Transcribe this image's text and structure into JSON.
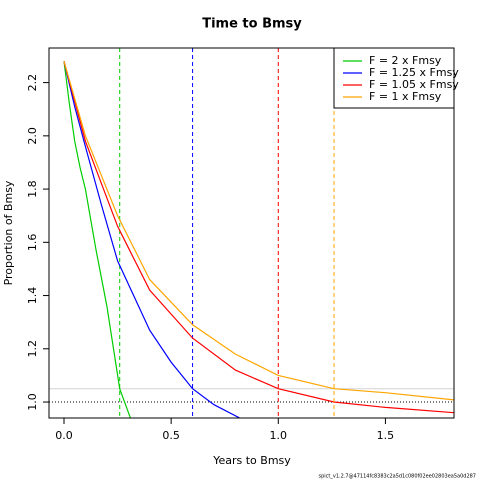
{
  "chart_data": {
    "type": "line",
    "title": "Time to Bmsy",
    "xlabel": "Years to Bmsy",
    "ylabel": "Proportion of Bmsy",
    "footer": "spict_v1.2.7@47114fc8383c2a5d1c080f02ee02803ea5a0d287",
    "xlim": [
      -0.07,
      1.82
    ],
    "ylim": [
      0.94,
      2.33
    ],
    "xticks": [
      {
        "value": 0,
        "label": "0.0"
      },
      {
        "value": 0.5,
        "label": "0.5"
      },
      {
        "value": 1,
        "label": "1.0"
      },
      {
        "value": 1.5,
        "label": "1.5"
      }
    ],
    "yticks": [
      {
        "value": 1,
        "label": "1.0"
      },
      {
        "value": 1.2,
        "label": "1.2"
      },
      {
        "value": 1.4,
        "label": "1.4"
      },
      {
        "value": 1.6,
        "label": "1.6"
      },
      {
        "value": 1.8,
        "label": "1.8"
      },
      {
        "value": 2,
        "label": "2.0"
      },
      {
        "value": 2.2,
        "label": "2.2"
      }
    ],
    "legend": "topright",
    "hlines": [
      {
        "value": 1.05,
        "color": "#d3d3d3",
        "style": "solid"
      },
      {
        "value": 1,
        "color": "#000000",
        "style": "dotted"
      }
    ],
    "series": [
      {
        "name": "F = 2 x Fmsy",
        "color": "#00cd00",
        "time": 0.26,
        "x": [
          0,
          0.025,
          0.05,
          0.075,
          0.1,
          0.15,
          0.2,
          0.26,
          0.31
        ],
        "values": [
          2.28,
          2.12,
          1.98,
          1.88,
          1.8,
          1.57,
          1.36,
          1.05,
          0.94
        ]
      },
      {
        "name": "F = 1.25 x Fmsy",
        "color": "#0000ff",
        "time": 0.6,
        "x": [
          0,
          0.05,
          0.1,
          0.175,
          0.25,
          0.4,
          0.5,
          0.6,
          0.7,
          0.82
        ],
        "values": [
          2.28,
          2.11,
          1.96,
          1.74,
          1.53,
          1.27,
          1.15,
          1.05,
          0.99,
          0.94
        ]
      },
      {
        "name": "F = 1.05 x Fmsy",
        "color": "#ff0000",
        "time": 1,
        "x": [
          0,
          0.1,
          0.25,
          0.4,
          0.6,
          0.8,
          1,
          1.26,
          1.5,
          1.82
        ],
        "values": [
          2.28,
          1.98,
          1.66,
          1.42,
          1.24,
          1.12,
          1.05,
          1,
          0.98,
          0.96
        ]
      },
      {
        "name": "F = 1 x Fmsy",
        "color": "#ffa500",
        "time": 1.26,
        "x": [
          0,
          0.1,
          0.25,
          0.4,
          0.6,
          0.8,
          1,
          1.26,
          1.5,
          1.82
        ],
        "values": [
          2.28,
          2,
          1.7,
          1.46,
          1.29,
          1.18,
          1.1,
          1.05,
          1.035,
          1.008
        ]
      }
    ]
  }
}
